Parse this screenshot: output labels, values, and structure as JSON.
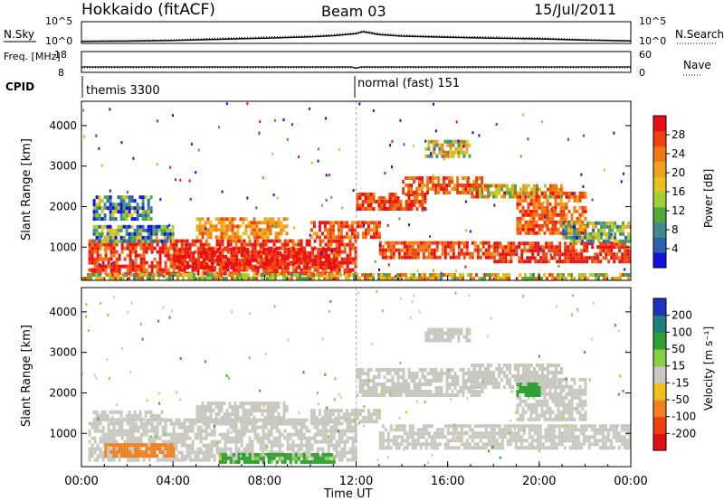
{
  "header": {
    "station": "Hokkaido (fitACF)",
    "beam": "Beam 03",
    "date": "15/Jul/2011"
  },
  "chart_data": [
    {
      "type": "line",
      "panel": "noise",
      "left_label": "N.Sky",
      "right_label": "N.Search",
      "left_ticks": [
        "10^5",
        "10^0"
      ],
      "right_ticks": [
        "10^5",
        "10^0"
      ],
      "series": [
        {
          "name": "N.Sky",
          "style": "solid",
          "x": [
            0,
            2,
            4,
            6,
            8,
            10,
            11,
            12,
            12.3,
            13,
            14,
            16,
            18,
            20,
            22,
            24
          ],
          "y": [
            0.3,
            0.35,
            0.5,
            0.8,
            1.1,
            1.4,
            1.7,
            2.2,
            2.7,
            2.0,
            1.6,
            1.3,
            1.1,
            0.9,
            0.6,
            0.4
          ]
        },
        {
          "name": "N.Search",
          "style": "dotted",
          "x": [
            0,
            2,
            4,
            6,
            8,
            10,
            11,
            12,
            12.3,
            13,
            14,
            16,
            18,
            20,
            22,
            24
          ],
          "y": [
            0.4,
            0.5,
            0.7,
            1.1,
            1.4,
            1.7,
            2.0,
            2.5,
            3.0,
            2.3,
            1.9,
            1.6,
            1.4,
            1.2,
            0.8,
            0.5
          ]
        }
      ]
    },
    {
      "type": "line",
      "panel": "frequency",
      "left_label": "Freq. [MHz]",
      "right_label": "Nave",
      "left_ticks": [
        "18",
        "8"
      ],
      "right_ticks": [
        "60",
        "0"
      ],
      "series": [
        {
          "name": "Freq",
          "style": "solid",
          "x": [
            0,
            11.8,
            12.0,
            12.2,
            24
          ],
          "y": [
            10.6,
            10.6,
            10.0,
            10.6,
            10.6
          ]
        },
        {
          "name": "Nave",
          "style": "dotted",
          "x": [
            0,
            24
          ],
          "y": [
            13,
            13
          ]
        }
      ]
    },
    {
      "type": "table",
      "panel": "cpid",
      "label": "CPID",
      "segments": [
        {
          "start": 0,
          "text": "themis 3300"
        },
        {
          "start": 12,
          "text": "normal (fast) 151"
        }
      ]
    },
    {
      "type": "heatmap",
      "panel": "power",
      "ylabel": "Slant Range [km]",
      "yticks": [
        1000,
        2000,
        3000,
        4000
      ],
      "ylim": [
        180,
        4600
      ],
      "xlim": [
        0,
        24
      ],
      "colorbar": {
        "label": "Power [dB]",
        "ticks": [
          4,
          8,
          12,
          16,
          20,
          24,
          28
        ],
        "range": [
          0,
          32
        ],
        "colors": [
          "#1010e0",
          "#2f5fb0",
          "#3f8a8a",
          "#4faa3a",
          "#9fcf30",
          "#e8c020",
          "#f0a020",
          "#f07810",
          "#f04010",
          "#e81010"
        ]
      },
      "regions": [
        {
          "x": [
            0.3,
            12
          ],
          "y": [
            300,
            1150
          ],
          "value": 28
        },
        {
          "x": [
            4,
            11
          ],
          "y": [
            450,
            950
          ],
          "value": 30
        },
        {
          "x": [
            0.5,
            4
          ],
          "y": [
            1100,
            1500
          ],
          "value": 10
        },
        {
          "x": [
            0.5,
            3
          ],
          "y": [
            1650,
            2200
          ],
          "value": 9
        },
        {
          "x": [
            5,
            9
          ],
          "y": [
            1200,
            1700
          ],
          "value": 22
        },
        {
          "x": [
            10,
            13
          ],
          "y": [
            1200,
            1600
          ],
          "value": 26
        },
        {
          "x": [
            12,
            15
          ],
          "y": [
            1900,
            2300
          ],
          "value": 28
        },
        {
          "x": [
            14,
            17.5
          ],
          "y": [
            2300,
            2700
          ],
          "value": 26
        },
        {
          "x": [
            17,
            21
          ],
          "y": [
            2200,
            2500
          ],
          "value": 20
        },
        {
          "x": [
            13,
            18
          ],
          "y": [
            700,
            1100
          ],
          "value": 27
        },
        {
          "x": [
            18,
            24
          ],
          "y": [
            600,
            1100
          ],
          "value": 29
        },
        {
          "x": [
            19,
            22
          ],
          "y": [
            1300,
            2300
          ],
          "value": 25
        },
        {
          "x": [
            15,
            17
          ],
          "y": [
            3200,
            3600
          ],
          "value": 16
        },
        {
          "x": [
            21,
            24
          ],
          "y": [
            1100,
            1600
          ],
          "value": 12
        },
        {
          "x": [
            0,
            24
          ],
          "y": [
            180,
            350
          ],
          "value": 18
        }
      ]
    },
    {
      "type": "heatmap",
      "panel": "velocity",
      "ylabel": "Slant Range [km]",
      "yticks": [
        1000,
        2000,
        3000,
        4000
      ],
      "ylim": [
        180,
        4600
      ],
      "xlim": [
        0,
        24
      ],
      "xticks": [
        "00:00",
        "04:00",
        "08:00",
        "12:00",
        "16:00",
        "20:00",
        "00:00"
      ],
      "xlabel": "Time UT",
      "colorbar": {
        "label": "Velocity [m s⁻¹]",
        "ticks": [
          200,
          100,
          50,
          15,
          -15,
          -50,
          -100,
          -200
        ],
        "colors": [
          "#2030c0",
          "#208080",
          "#30a030",
          "#80d040",
          "#c8c8c0",
          "#f0c020",
          "#f08020",
          "#f04010",
          "#e01010"
        ]
      },
      "regions": [
        {
          "x": [
            0.3,
            12
          ],
          "y": [
            300,
            1300
          ],
          "value": 0
        },
        {
          "x": [
            0.5,
            3.5
          ],
          "y": [
            1300,
            1500
          ],
          "value": 0
        },
        {
          "x": [
            5,
            9
          ],
          "y": [
            1250,
            1750
          ],
          "value": 0
        },
        {
          "x": [
            10,
            13
          ],
          "y": [
            1250,
            1600
          ],
          "value": 0
        },
        {
          "x": [
            12,
            17.5
          ],
          "y": [
            1900,
            2600
          ],
          "value": 0
        },
        {
          "x": [
            17,
            21
          ],
          "y": [
            2100,
            2700
          ],
          "value": 0
        },
        {
          "x": [
            13,
            24
          ],
          "y": [
            600,
            1200
          ],
          "value": 0
        },
        {
          "x": [
            19,
            22
          ],
          "y": [
            1300,
            2300
          ],
          "value": 0
        },
        {
          "x": [
            6,
            11
          ],
          "y": [
            250,
            500
          ],
          "value": 35
        },
        {
          "x": [
            19,
            20
          ],
          "y": [
            1900,
            2200
          ],
          "value": 60
        },
        {
          "x": [
            1,
            4
          ],
          "y": [
            400,
            700
          ],
          "value": -40
        },
        {
          "x": [
            15,
            17
          ],
          "y": [
            3250,
            3550
          ],
          "value": 0
        }
      ]
    }
  ]
}
